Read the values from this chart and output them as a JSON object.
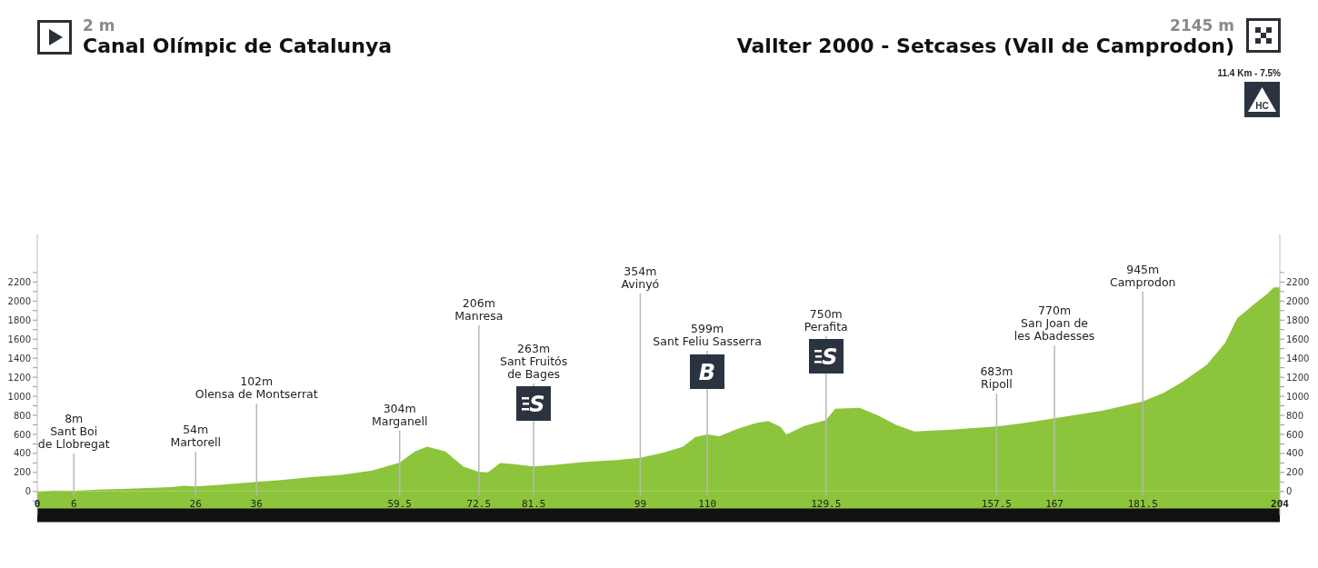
{
  "chart_data": {
    "type": "area",
    "title": "Canal Olímpic de Catalunya",
    "subtitle": "Vallter 2000 - Setcases (Vall de Camprodon)",
    "x": [
      0,
      3,
      6,
      10,
      15,
      20,
      22,
      24,
      26,
      30,
      36,
      40,
      45,
      50,
      55,
      59.5,
      62,
      64,
      67,
      70,
      72.5,
      74,
      76,
      78,
      81.5,
      85,
      90,
      95,
      99,
      103,
      106,
      108,
      110,
      112,
      115,
      118,
      120,
      122,
      123,
      126,
      129.5,
      131,
      135,
      138,
      141,
      144,
      147,
      150,
      157.5,
      162,
      167,
      175,
      181.5,
      185,
      188,
      192,
      195,
      197,
      200,
      202,
      203,
      204
    ],
    "values": [
      2,
      10,
      8,
      20,
      30,
      40,
      45,
      60,
      54,
      70,
      102,
      120,
      150,
      175,
      220,
      304,
      420,
      470,
      420,
      260,
      206,
      200,
      300,
      290,
      263,
      280,
      310,
      330,
      354,
      410,
      470,
      570,
      599,
      580,
      660,
      720,
      740,
      680,
      600,
      690,
      750,
      870,
      880,
      800,
      700,
      630,
      640,
      650,
      683,
      720,
      770,
      850,
      945,
      1040,
      1150,
      1330,
      1560,
      1820,
      1980,
      2080,
      2145,
      2145
    ],
    "color": "#8cc43c",
    "xlim": [
      0,
      204
    ],
    "xticks": [
      0,
      6,
      26,
      36,
      59.5,
      72.5,
      81.5,
      99,
      110,
      129.5,
      157.5,
      167,
      181.5,
      204
    ],
    "ylim": [
      -250,
      2700
    ],
    "yticks": [
      {
        "value": -100,
        "label": null
      },
      0,
      {
        "value": 100,
        "label": null
      },
      200,
      {
        "value": 300,
        "label": null
      },
      400,
      {
        "value": 500,
        "label": null
      },
      600,
      {
        "value": 700,
        "label": null
      },
      800,
      {
        "value": 900,
        "label": null
      },
      1000,
      {
        "value": 1100,
        "label": null
      },
      1200,
      {
        "value": 1300,
        "label": null
      },
      1400,
      {
        "value": 1500,
        "label": null
      },
      1600,
      {
        "value": 1700,
        "label": null
      },
      1800,
      {
        "value": 1900,
        "label": null
      },
      2000,
      {
        "value": 2100,
        "label": null
      },
      2200,
      {
        "value": 2300,
        "label": null
      }
    ],
    "y2lim": [
      -250,
      2700
    ],
    "y2ticks": [
      {
        "value": -100,
        "label": null
      },
      0,
      {
        "value": 100,
        "label": null
      },
      200,
      {
        "value": 300,
        "label": null
      },
      400,
      {
        "value": 500,
        "label": null
      },
      600,
      {
        "value": 700,
        "label": null
      },
      800,
      {
        "value": 900,
        "label": null
      },
      1000,
      {
        "value": 1100,
        "label": null
      },
      1200,
      {
        "value": 1300,
        "label": null
      },
      1400,
      {
        "value": 1500,
        "label": null
      },
      1600,
      {
        "value": 1700,
        "label": null
      },
      1800,
      {
        "value": 1900,
        "label": null
      },
      2000,
      {
        "value": 2100,
        "label": null
      },
      2200,
      {
        "value": 2300,
        "label": null
      }
    ],
    "annotations": [
      "2 m",
      "2145 m",
      "11.4 Km - 7.5%",
      "HC",
      {
        "text": "S",
        "x": 81.5
      },
      {
        "text": "B",
        "x": 110
      },
      {
        "text": "S",
        "x": 129.5
      }
    ],
    "ref_lines": [
      {
        "axis": "x",
        "value": 6,
        "label": "8m\nSant Boi\nde Llobregat",
        "color": "#b8b8b8"
      },
      {
        "axis": "x",
        "value": 26,
        "label": "54m\nMartorell",
        "color": "#b8b8b8"
      },
      {
        "axis": "x",
        "value": 36,
        "label": "102m\nOlensa de Montserrat",
        "color": "#b8b8b8"
      },
      {
        "axis": "x",
        "value": 59.5,
        "label": "304m\nMarganell",
        "color": "#b8b8b8"
      },
      {
        "axis": "x",
        "value": 72.5,
        "label": "206m\nManresa",
        "color": "#b8b8b8"
      },
      {
        "axis": "x",
        "value": 81.5,
        "label": "263m\nSant Fruitós\nde Bages",
        "color": "#b8b8b8"
      },
      {
        "axis": "x",
        "value": 99,
        "label": "354m\nAvinyó",
        "color": "#b8b8b8"
      },
      {
        "axis": "x",
        "value": 110,
        "label": "599m\nSant Feliu Sasserra",
        "color": "#b8b8b8"
      },
      {
        "axis": "x",
        "value": 129.5,
        "label": "750m\nPerafita",
        "color": "#b8b8b8"
      },
      {
        "axis": "x",
        "value": 157.5,
        "label": "683m\nRipoll",
        "color": "#b8b8b8"
      },
      {
        "axis": "x",
        "value": 167,
        "label": "770m\nSan Joan de\nles Abadesses",
        "color": "#b8b8b8"
      },
      {
        "axis": "x",
        "value": 181.5,
        "label": "945m\nCamprodon",
        "color": "#b8b8b8"
      }
    ]
  }
}
